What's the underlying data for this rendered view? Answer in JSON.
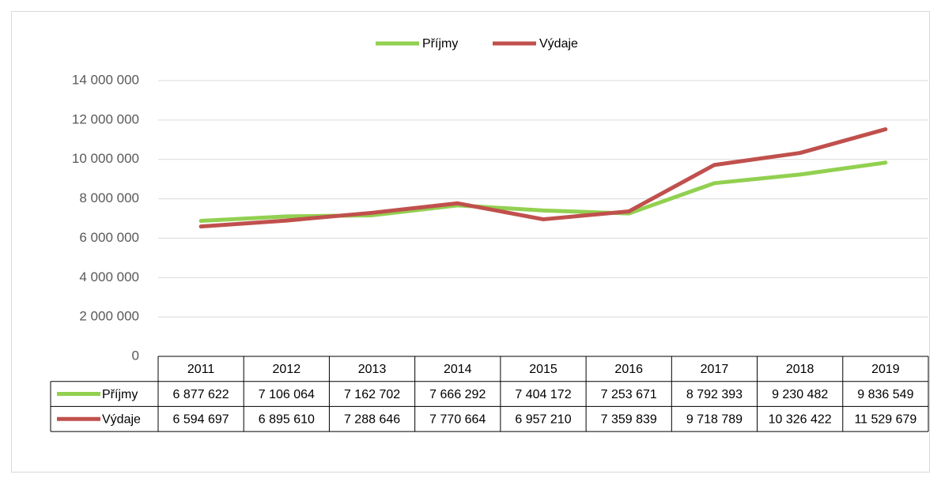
{
  "chart_data": {
    "type": "line",
    "categories": [
      "2011",
      "2012",
      "2013",
      "2014",
      "2015",
      "2016",
      "2017",
      "2018",
      "2019"
    ],
    "series": [
      {
        "name": "Příjmy",
        "color": "#92d050",
        "values": [
          6877622,
          7106064,
          7162702,
          7666292,
          7404172,
          7253671,
          8792393,
          9230482,
          9836549
        ],
        "value_labels": [
          "6 877 622",
          "7 106 064",
          "7 162 702",
          "7 666 292",
          "7 404 172",
          "7 253 671",
          "8 792 393",
          "9 230 482",
          "9 836 549"
        ]
      },
      {
        "name": "Výdaje",
        "color": "#c0504d",
        "values": [
          6594697,
          6895610,
          7288646,
          7770664,
          6957210,
          7359839,
          9718789,
          10326422,
          11529679
        ],
        "value_labels": [
          "6 594 697",
          "6 895 610",
          "7 288 646",
          "7 770 664",
          "6 957 210",
          "7 359 839",
          "9 718 789",
          "10 326 422",
          "11 529 679"
        ]
      }
    ],
    "ylim": [
      0,
      14000000
    ],
    "yticks": [
      {
        "value": 0,
        "label": "0"
      },
      {
        "value": 2000000,
        "label": "2 000 000"
      },
      {
        "value": 4000000,
        "label": "4 000 000"
      },
      {
        "value": 6000000,
        "label": "6 000 000"
      },
      {
        "value": 8000000,
        "label": "8 000 000"
      },
      {
        "value": 10000000,
        "label": "10 000 000"
      },
      {
        "value": 12000000,
        "label": "12 000 000"
      },
      {
        "value": 14000000,
        "label": "14 000 000"
      }
    ],
    "grid": true,
    "legend": "top",
    "data_table": true
  }
}
